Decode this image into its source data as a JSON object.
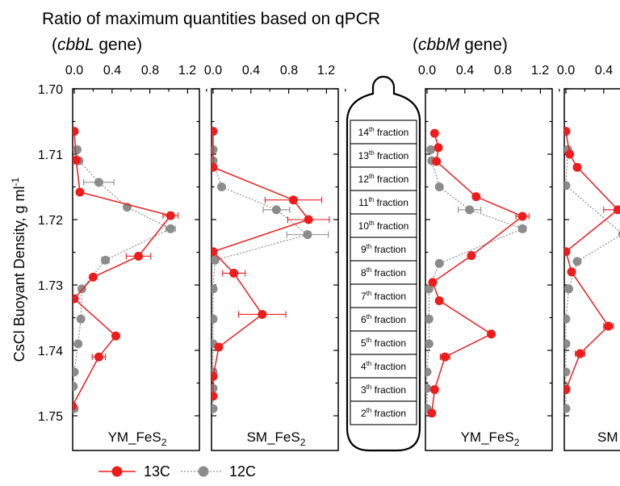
{
  "title": "Ratio of maximum quantities based on qPCR",
  "gene_labels": {
    "left_open": "(",
    "left_gene": "cbbL",
    "left_rest": " gene)",
    "right_open": "(",
    "right_gene": "cbbM",
    "right_rest": " gene)"
  },
  "y_axis": {
    "label": "CsCl Buoyant Density, g ml",
    "label_sup": "-1",
    "ticks": [
      "1.70",
      "1.71",
      "1.72",
      "1.73",
      "1.74",
      "1.75"
    ]
  },
  "x_ticks": [
    "0.0",
    "0.4",
    "0.8",
    "1.2"
  ],
  "panels": [
    {
      "label_main": "YM_FeS",
      "label_sub": "2"
    },
    {
      "label_main": "SM_FeS",
      "label_sub": "2"
    },
    {
      "label_main": "YM_FeS",
      "label_sub": "2"
    },
    {
      "label_main": "SM",
      "label_sub": ""
    }
  ],
  "tube": {
    "fractions": [
      {
        "num": "14",
        "sup": "th",
        "text": " fraction"
      },
      {
        "num": "13",
        "sup": "th",
        "text": " fraction"
      },
      {
        "num": "12",
        "sup": "th",
        "text": " fraction"
      },
      {
        "num": "11",
        "sup": "th",
        "text": " fraction"
      },
      {
        "num": "10",
        "sup": "th",
        "text": " fraction"
      },
      {
        "num": "9",
        "sup": "th",
        "text": " fraction"
      },
      {
        "num": "8",
        "sup": "th",
        "text": " fraction"
      },
      {
        "num": "7",
        "sup": "th",
        "text": " fraction"
      },
      {
        "num": "6",
        "sup": "th",
        "text": " fraction"
      },
      {
        "num": "5",
        "sup": "th",
        "text": " fraction"
      },
      {
        "num": "4",
        "sup": "th",
        "text": " fraction"
      },
      {
        "num": "3",
        "sup": "th",
        "text": " fraction"
      },
      {
        "num": "2",
        "sup": "th",
        "text": " fraction"
      }
    ]
  },
  "legend": [
    {
      "name": "13C",
      "color": "#ee1c1c",
      "style": "solid"
    },
    {
      "name": "12C",
      "color": "#8c8c8c",
      "style": "dotted"
    }
  ],
  "chart_data": [
    {
      "type": "line",
      "orientation": "profile",
      "panel": "YM_FeS2 (cbbL gene)",
      "xlim": [
        0,
        1.4
      ],
      "ylim": [
        1.7,
        1.755
      ],
      "y_inverted": true,
      "series": [
        {
          "name": "13C",
          "points": [
            {
              "x": 0.0,
              "y": 1.7065
            },
            {
              "x": 0.02,
              "y": 1.7109
            },
            {
              "x": 0.06,
              "y": 1.7158
            },
            {
              "x": 1.02,
              "y": 1.7194,
              "err": 0.08
            },
            {
              "x": 0.68,
              "y": 1.7256,
              "err": 0.13
            },
            {
              "x": 0.2,
              "y": 1.7288
            },
            {
              "x": 0.0,
              "y": 1.7321
            },
            {
              "x": 0.44,
              "y": 1.7378
            },
            {
              "x": 0.26,
              "y": 1.741,
              "err": 0.07
            },
            {
              "x": -0.02,
              "y": 1.7485
            }
          ]
        },
        {
          "name": "12C",
          "points": [
            {
              "x": 0.03,
              "y": 1.7093
            },
            {
              "x": 0.05,
              "y": 1.711
            },
            {
              "x": 0.26,
              "y": 1.7143,
              "err": 0.16
            },
            {
              "x": 0.56,
              "y": 1.7181
            },
            {
              "x": 1.02,
              "y": 1.7214,
              "err": 0.05
            },
            {
              "x": 0.33,
              "y": 1.7262,
              "err": 0.04
            },
            {
              "x": 0.08,
              "y": 1.7306
            },
            {
              "x": 0.07,
              "y": 1.7352
            },
            {
              "x": 0.04,
              "y": 1.739
            },
            {
              "x": 0.0,
              "y": 1.7433
            },
            {
              "x": -0.01,
              "y": 1.7455
            },
            {
              "x": 0.0,
              "y": 1.7489
            }
          ]
        }
      ]
    },
    {
      "type": "line",
      "orientation": "profile",
      "panel": "SM_FeS2 (cbbL gene)",
      "xlim": [
        0,
        1.4
      ],
      "ylim": [
        1.7,
        1.755
      ],
      "y_inverted": true,
      "series": [
        {
          "name": "13C",
          "points": [
            {
              "x": 0.0,
              "y": 1.7065
            },
            {
              "x": 0.0,
              "y": 1.712
            },
            {
              "x": 0.85,
              "y": 1.717,
              "err": 0.3
            },
            {
              "x": 1.01,
              "y": 1.72,
              "err": 0.22
            },
            {
              "x": 0.0,
              "y": 1.7249
            },
            {
              "x": 0.22,
              "y": 1.7282,
              "err": 0.12
            },
            {
              "x": 0.52,
              "y": 1.7345,
              "err": 0.25
            },
            {
              "x": 0.06,
              "y": 1.7395
            },
            {
              "x": 0.0,
              "y": 1.744
            },
            {
              "x": 0.0,
              "y": 1.747
            }
          ]
        },
        {
          "name": "12C",
          "points": [
            {
              "x": 0.0,
              "y": 1.7093
            },
            {
              "x": 0.0,
              "y": 1.711
            },
            {
              "x": 0.09,
              "y": 1.715
            },
            {
              "x": 0.67,
              "y": 1.7185,
              "err": 0.14
            },
            {
              "x": 1.0,
              "y": 1.7223,
              "err": 0.22
            },
            {
              "x": 0.02,
              "y": 1.7262
            },
            {
              "x": 0.0,
              "y": 1.7306
            },
            {
              "x": 0.0,
              "y": 1.7352
            },
            {
              "x": 0.0,
              "y": 1.739
            },
            {
              "x": 0.0,
              "y": 1.7433
            },
            {
              "x": 0.0,
              "y": 1.7458
            },
            {
              "x": 0.0,
              "y": 1.7489
            }
          ]
        }
      ]
    },
    {
      "type": "line",
      "orientation": "profile",
      "panel": "YM_FeS2 (cbbM gene)",
      "xlim": [
        0,
        1.4
      ],
      "ylim": [
        1.7,
        1.755
      ],
      "y_inverted": true,
      "series": [
        {
          "name": "13C",
          "points": [
            {
              "x": 0.08,
              "y": 1.7068
            },
            {
              "x": 0.12,
              "y": 1.709
            },
            {
              "x": 0.1,
              "y": 1.7111
            },
            {
              "x": 0.52,
              "y": 1.7165
            },
            {
              "x": 1.01,
              "y": 1.7195,
              "err": 0.07
            },
            {
              "x": 0.47,
              "y": 1.7255
            },
            {
              "x": 0.06,
              "y": 1.7296
            },
            {
              "x": 0.13,
              "y": 1.7324
            },
            {
              "x": 0.68,
              "y": 1.7375
            },
            {
              "x": 0.19,
              "y": 1.741,
              "err": 0.05
            },
            {
              "x": 0.08,
              "y": 1.746
            },
            {
              "x": 0.05,
              "y": 1.7496
            }
          ]
        },
        {
          "name": "12C",
          "points": [
            {
              "x": 0.04,
              "y": 1.7093
            },
            {
              "x": 0.05,
              "y": 1.711
            },
            {
              "x": 0.13,
              "y": 1.715
            },
            {
              "x": 0.45,
              "y": 1.7185,
              "err": 0.12
            },
            {
              "x": 1.01,
              "y": 1.7214,
              "err": 0.04
            },
            {
              "x": 0.13,
              "y": 1.7267
            },
            {
              "x": 0.02,
              "y": 1.7306
            },
            {
              "x": 0.02,
              "y": 1.7352
            },
            {
              "x": 0.02,
              "y": 1.739
            },
            {
              "x": 0.0,
              "y": 1.7433
            },
            {
              "x": 0.0,
              "y": 1.7458
            },
            {
              "x": 0.0,
              "y": 1.7489
            }
          ]
        }
      ]
    },
    {
      "type": "line",
      "orientation": "profile",
      "panel": "SM (cbbM gene, cropped)",
      "xlim": [
        0,
        1.4
      ],
      "ylim": [
        1.7,
        1.755
      ],
      "y_inverted": true,
      "series": [
        {
          "name": "13C",
          "points": [
            {
              "x": 0.0,
              "y": 1.7065
            },
            {
              "x": 0.04,
              "y": 1.71
            },
            {
              "x": 0.12,
              "y": 1.712
            },
            {
              "x": 0.55,
              "y": 1.7185,
              "err": 0.15
            },
            {
              "x": 0.0,
              "y": 1.7249
            },
            {
              "x": 0.06,
              "y": 1.728
            },
            {
              "x": 0.45,
              "y": 1.7363,
              "err": 0.05
            },
            {
              "x": 0.15,
              "y": 1.7405,
              "err": 0.05
            },
            {
              "x": 0.0,
              "y": 1.746
            }
          ]
        },
        {
          "name": "12C",
          "points": [
            {
              "x": 0.02,
              "y": 1.7093
            },
            {
              "x": 0.0,
              "y": 1.7148
            },
            {
              "x": 0.6,
              "y": 1.7222
            },
            {
              "x": 0.12,
              "y": 1.7264
            },
            {
              "x": 0.03,
              "y": 1.7306
            },
            {
              "x": 0.0,
              "y": 1.7352
            },
            {
              "x": 0.0,
              "y": 1.739
            },
            {
              "x": 0.0,
              "y": 1.7433
            },
            {
              "x": 0.0,
              "y": 1.7458
            },
            {
              "x": 0.0,
              "y": 1.7489
            }
          ]
        }
      ]
    }
  ]
}
